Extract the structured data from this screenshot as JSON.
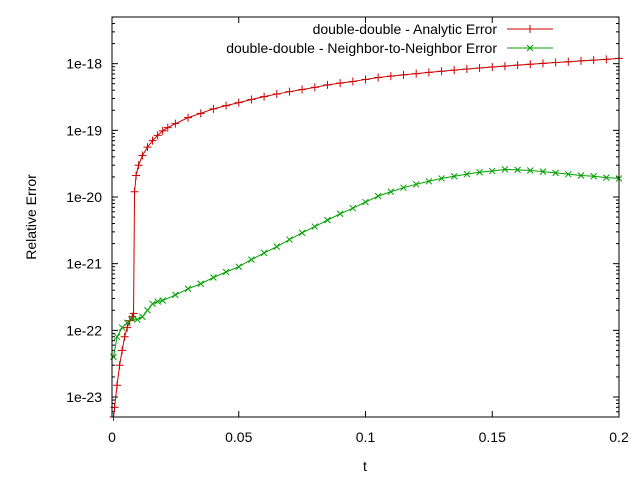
{
  "chart_data": {
    "type": "line",
    "title": "",
    "xlabel": "t",
    "ylabel": "Relative Error",
    "xlim": [
      0,
      0.2
    ],
    "ylim_log10": [
      -23.3,
      -17.3
    ],
    "yscale": "log",
    "grid": false,
    "legend_position": "top-right",
    "x_ticks": [
      0,
      0.05,
      0.1,
      0.15,
      0.2
    ],
    "x_tick_labels": [
      "0",
      "0.05",
      "0.1",
      "0.15",
      "0.2"
    ],
    "y_ticks_log10": [
      -23,
      -22,
      -21,
      -20,
      -19,
      -18
    ],
    "y_tick_labels": [
      "1e-23",
      "1e-22",
      "1e-21",
      "1e-20",
      "1e-19",
      "1e-18"
    ],
    "series": [
      {
        "name": "double-double - Analytic Error",
        "color": "#cc0000",
        "marker": "plus",
        "points": [
          [
            0.0006,
            3.5e-24
          ],
          [
            0.001,
            7e-24
          ],
          [
            0.002,
            1.5e-23
          ],
          [
            0.003,
            3e-23
          ],
          [
            0.004,
            5e-23
          ],
          [
            0.005,
            8e-23
          ],
          [
            0.006,
            1.1e-22
          ],
          [
            0.007,
            1.4e-22
          ],
          [
            0.008,
            1.6e-22
          ],
          [
            0.0085,
            1.8e-22
          ],
          [
            0.0089,
            1.2e-20
          ],
          [
            0.0095,
            2.1e-20
          ],
          [
            0.0105,
            3e-20
          ],
          [
            0.012,
            4.2e-20
          ],
          [
            0.014,
            5.6e-20
          ],
          [
            0.016,
            7e-20
          ],
          [
            0.018,
            8.4e-20
          ],
          [
            0.02,
            9.8e-20
          ],
          [
            0.022,
            1.1e-19
          ],
          [
            0.025,
            1.26e-19
          ],
          [
            0.03,
            1.55e-19
          ],
          [
            0.035,
            1.8e-19
          ],
          [
            0.04,
            2.1e-19
          ],
          [
            0.045,
            2.35e-19
          ],
          [
            0.05,
            2.6e-19
          ],
          [
            0.055,
            2.9e-19
          ],
          [
            0.06,
            3.2e-19
          ],
          [
            0.065,
            3.5e-19
          ],
          [
            0.07,
            3.8e-19
          ],
          [
            0.075,
            4.1e-19
          ],
          [
            0.08,
            4.4e-19
          ],
          [
            0.085,
            4.8e-19
          ],
          [
            0.09,
            5.1e-19
          ],
          [
            0.095,
            5.4e-19
          ],
          [
            0.1,
            5.8e-19
          ],
          [
            0.105,
            6.2e-19
          ],
          [
            0.11,
            6.5e-19
          ],
          [
            0.115,
            6.8e-19
          ],
          [
            0.12,
            7.1e-19
          ],
          [
            0.125,
            7.4e-19
          ],
          [
            0.13,
            7.7e-19
          ],
          [
            0.135,
            8e-19
          ],
          [
            0.14,
            8.3e-19
          ],
          [
            0.145,
            8.6e-19
          ],
          [
            0.15,
            8.9e-19
          ],
          [
            0.155,
            9.2e-19
          ],
          [
            0.16,
            9.5e-19
          ],
          [
            0.165,
            9.8e-19
          ],
          [
            0.17,
            1.01e-18
          ],
          [
            0.175,
            1.04e-18
          ],
          [
            0.18,
            1.07e-18
          ],
          [
            0.185,
            1.1e-18
          ],
          [
            0.19,
            1.13e-18
          ],
          [
            0.195,
            1.16e-18
          ],
          [
            0.2,
            1.2e-18
          ]
        ]
      },
      {
        "name": "double-double - Neighbor-to-Neighbor Error",
        "color": "#00a000",
        "marker": "cross",
        "points": [
          [
            0.0006,
            4e-23
          ],
          [
            0.002,
            8e-23
          ],
          [
            0.004,
            1.1e-22
          ],
          [
            0.006,
            1.3e-22
          ],
          [
            0.008,
            1.5e-22
          ],
          [
            0.01,
            1.45e-22
          ],
          [
            0.012,
            1.6e-22
          ],
          [
            0.014,
            2e-22
          ],
          [
            0.016,
            2.5e-22
          ],
          [
            0.018,
            2.7e-22
          ],
          [
            0.02,
            2.8e-22
          ],
          [
            0.025,
            3.4e-22
          ],
          [
            0.03,
            4.2e-22
          ],
          [
            0.035,
            5e-22
          ],
          [
            0.04,
            6.2e-22
          ],
          [
            0.045,
            7.5e-22
          ],
          [
            0.05,
            9e-22
          ],
          [
            0.055,
            1.15e-21
          ],
          [
            0.06,
            1.45e-21
          ],
          [
            0.065,
            1.8e-21
          ],
          [
            0.07,
            2.3e-21
          ],
          [
            0.075,
            2.9e-21
          ],
          [
            0.08,
            3.6e-21
          ],
          [
            0.085,
            4.5e-21
          ],
          [
            0.09,
            5.6e-21
          ],
          [
            0.095,
            6.8e-21
          ],
          [
            0.1,
            8.4e-21
          ],
          [
            0.105,
            1.03e-20
          ],
          [
            0.11,
            1.2e-20
          ],
          [
            0.115,
            1.38e-20
          ],
          [
            0.12,
            1.55e-20
          ],
          [
            0.125,
            1.72e-20
          ],
          [
            0.13,
            1.9e-20
          ],
          [
            0.135,
            2.05e-20
          ],
          [
            0.14,
            2.2e-20
          ],
          [
            0.145,
            2.35e-20
          ],
          [
            0.15,
            2.45e-20
          ],
          [
            0.155,
            2.6e-20
          ],
          [
            0.16,
            2.55e-20
          ],
          [
            0.165,
            2.5e-20
          ],
          [
            0.17,
            2.4e-20
          ],
          [
            0.175,
            2.3e-20
          ],
          [
            0.18,
            2.2e-20
          ],
          [
            0.185,
            2.1e-20
          ],
          [
            0.19,
            2.05e-20
          ],
          [
            0.195,
            1.95e-20
          ],
          [
            0.2,
            1.9e-20
          ]
        ]
      }
    ]
  }
}
